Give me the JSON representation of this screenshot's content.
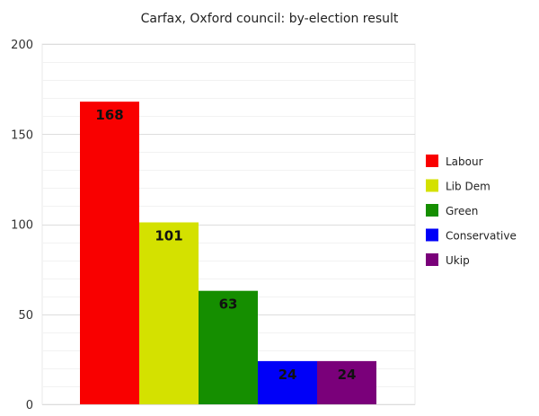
{
  "chart_data": {
    "type": "bar",
    "title": "Carfax, Oxford council: by-election result",
    "xlabel": "",
    "ylabel": "",
    "categories": [
      "Labour",
      "Lib Dem",
      "Green",
      "Conservative",
      "Ukip"
    ],
    "values": [
      168,
      101,
      63,
      24,
      24
    ],
    "colors": [
      "#f90000",
      "#d4e100",
      "#158e00",
      "#0000f8",
      "#7a007a"
    ],
    "ylim": [
      0,
      200
    ],
    "yticks": [
      0,
      50,
      100,
      150,
      200
    ],
    "grid": true,
    "legend": "right",
    "data_labels": [
      "168",
      "101",
      "63",
      "24",
      "24"
    ]
  }
}
